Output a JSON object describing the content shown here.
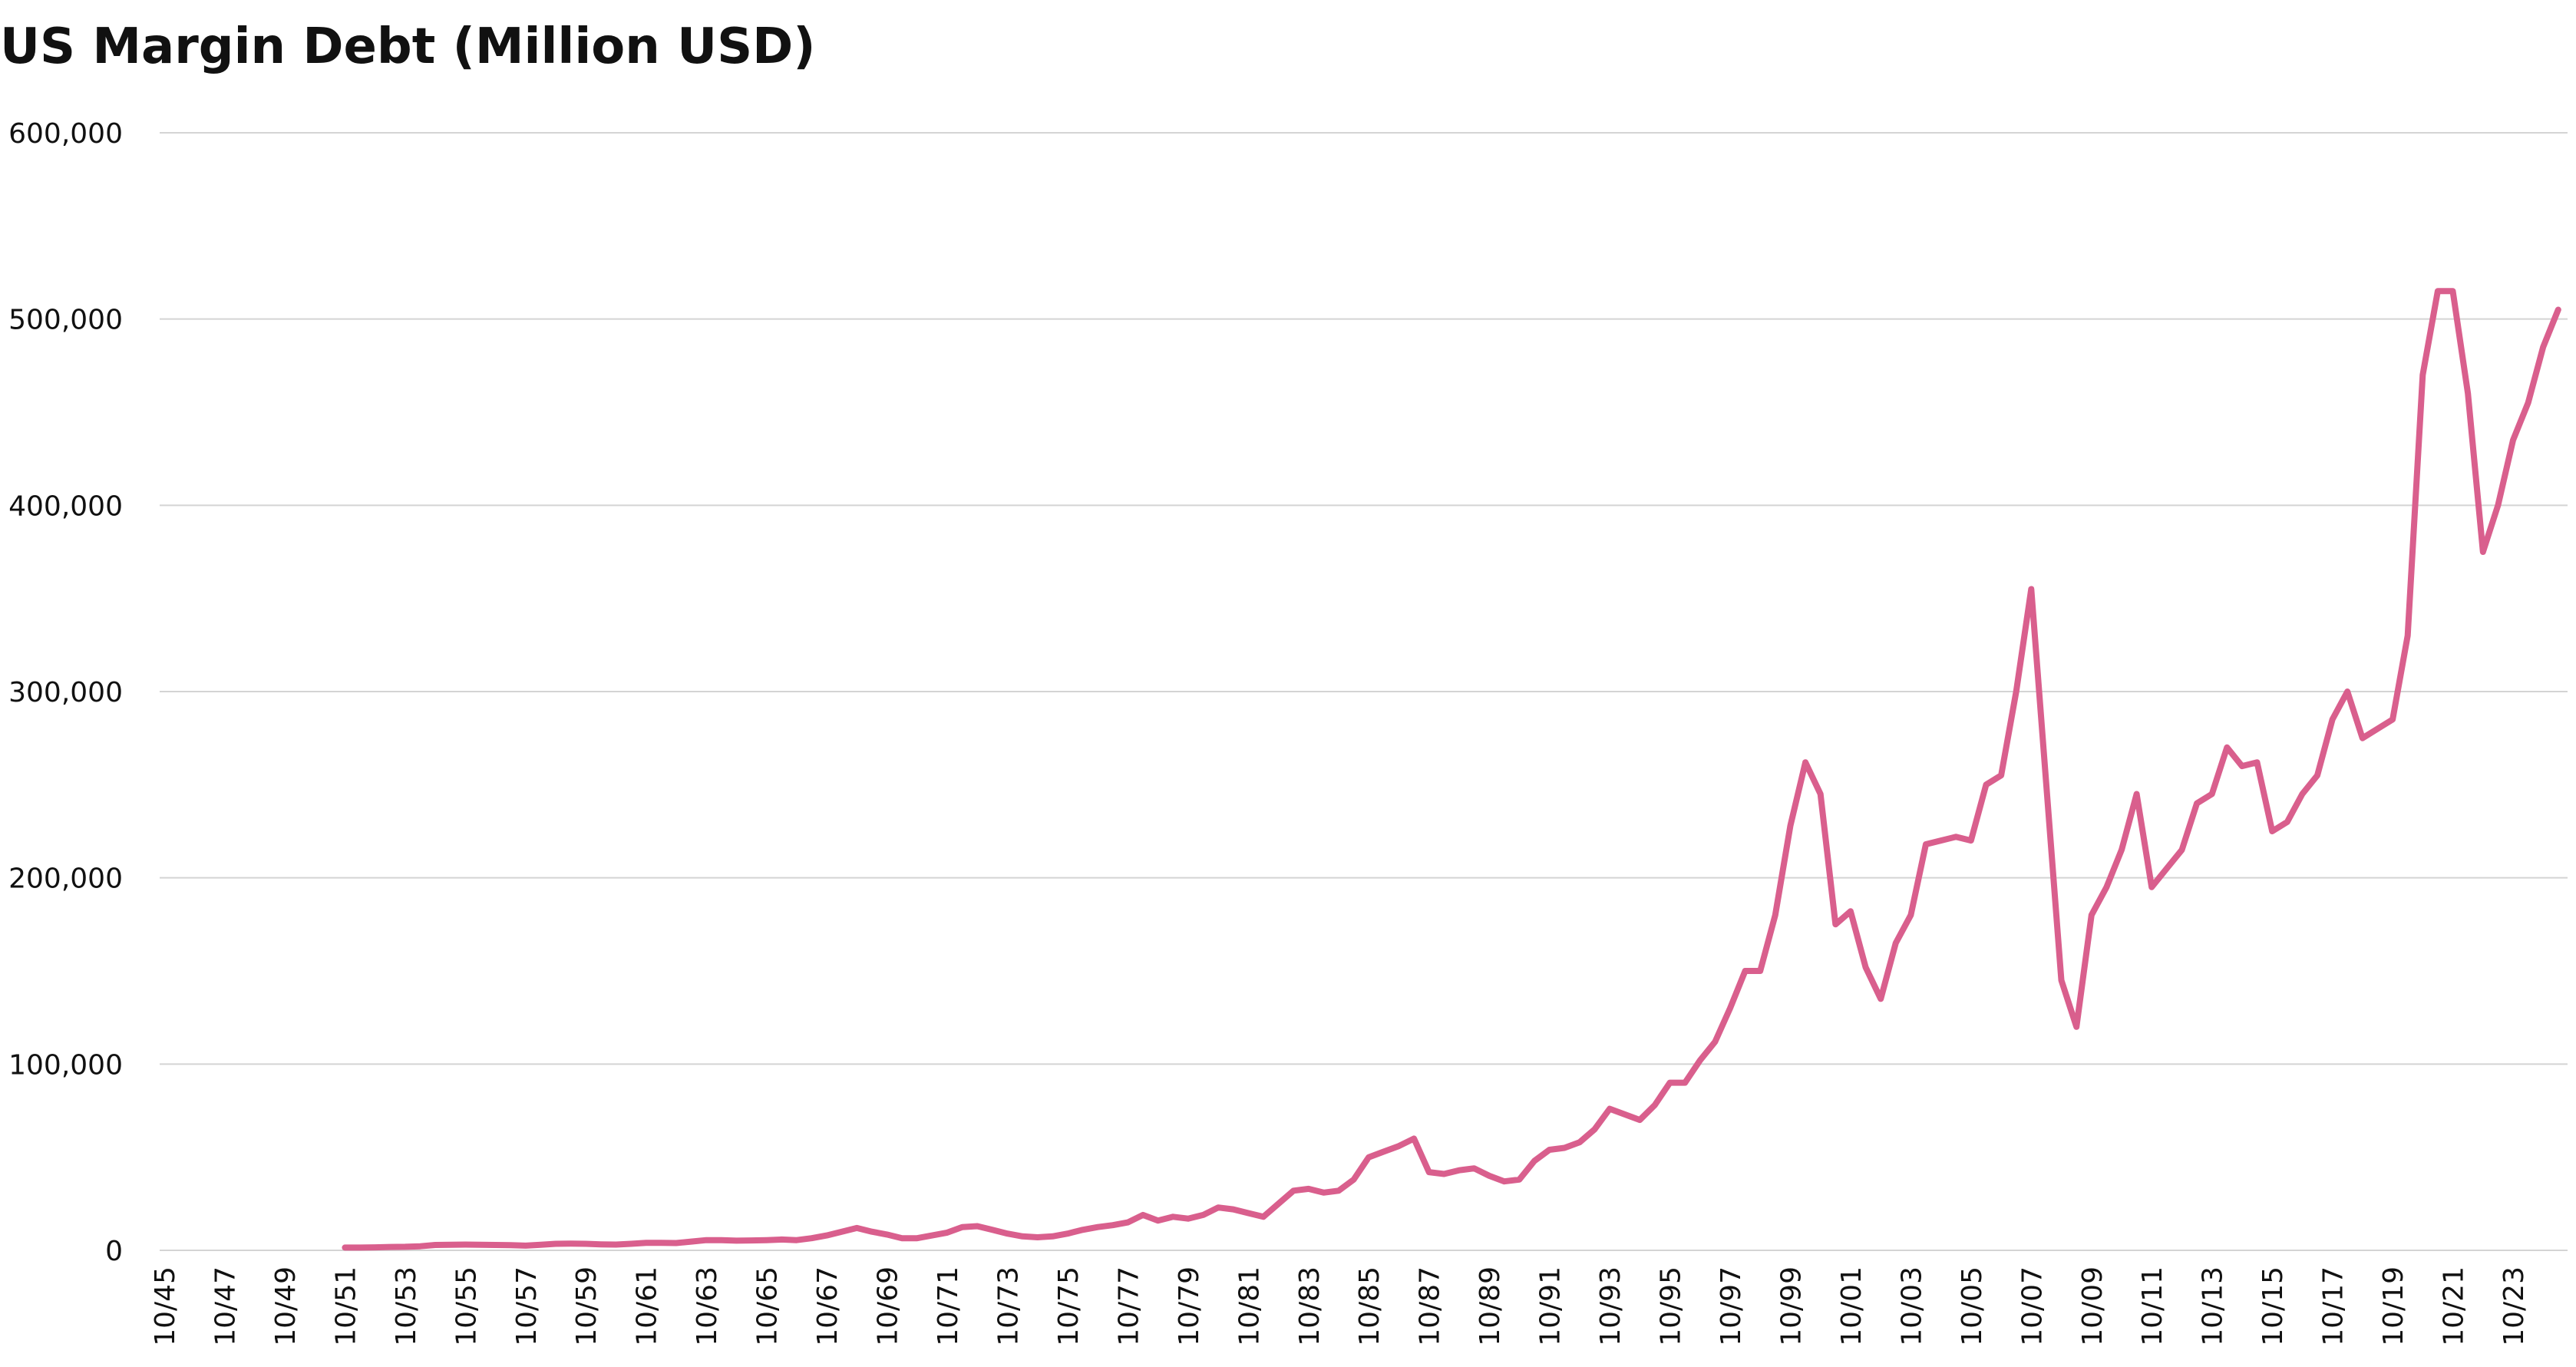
{
  "chart_data": {
    "type": "line",
    "title": "US Margin Debt (Million USD)",
    "categories": [
      "10/45",
      null,
      null,
      null,
      "10/47",
      null,
      null,
      null,
      "10/49",
      null,
      null,
      null,
      "10/51",
      null,
      null,
      null,
      "10/53",
      null,
      null,
      null,
      "10/55",
      null,
      null,
      null,
      "10/57",
      null,
      null,
      null,
      "10/59",
      null,
      null,
      null,
      "10/61",
      null,
      null,
      null,
      "10/63",
      null,
      null,
      null,
      "10/65",
      null,
      null,
      null,
      "10/67",
      null,
      null,
      null,
      "10/69",
      null,
      null,
      null,
      "10/71",
      null,
      null,
      null,
      "10/73",
      null,
      null,
      null,
      "10/75",
      null,
      null,
      null,
      "10/77",
      null,
      null,
      null,
      "10/79",
      null,
      null,
      null,
      "10/81",
      null,
      null,
      null,
      "10/83",
      null,
      null,
      null,
      "10/85",
      null,
      null,
      null,
      "10/87",
      null,
      null,
      null,
      "10/89",
      null,
      null,
      null,
      "10/91",
      null,
      null,
      null,
      "10/93",
      null,
      null,
      null,
      "10/95",
      null,
      null,
      null,
      "10/97",
      null,
      null,
      null,
      "10/99",
      null,
      null,
      null,
      "10/01",
      null,
      null,
      null,
      "10/03",
      null,
      null,
      null,
      "10/05",
      null,
      null,
      null,
      "10/07",
      null,
      null,
      null,
      "10/09",
      null,
      null,
      null,
      "10/11",
      null,
      null,
      null,
      "10/13",
      null,
      null,
      null,
      "10/15",
      null,
      null,
      null,
      "10/17",
      null,
      null,
      null,
      "10/19",
      null,
      null,
      null,
      "10/21",
      null,
      null,
      null,
      "10/23",
      null,
      null,
      null
    ],
    "series": [
      {
        "name": "US Margin Debt",
        "color": "#d95f8d",
        "values": [
          null,
          null,
          null,
          null,
          null,
          null,
          null,
          null,
          null,
          null,
          null,
          null,
          1500,
          1500,
          1600,
          1800,
          1900,
          2200,
          2900,
          3000,
          3100,
          3000,
          2900,
          2800,
          2500,
          3000,
          3500,
          3600,
          3500,
          3200,
          3100,
          3500,
          4000,
          4000,
          3900,
          4700,
          5500,
          5500,
          5200,
          5300,
          5500,
          5800,
          5500,
          6500,
          8000,
          10000,
          12000,
          10000,
          8500,
          6500,
          6500,
          8000,
          9500,
          12500,
          13000,
          11000,
          9000,
          7500,
          7000,
          7500,
          9000,
          11000,
          12500,
          13500,
          15000,
          19000,
          16000,
          18000,
          17000,
          19000,
          23000,
          22000,
          20000,
          18000,
          25000,
          32000,
          33000,
          31000,
          32000,
          38000,
          50000,
          53000,
          56000,
          60000,
          42000,
          41000,
          43000,
          44000,
          40000,
          37000,
          38000,
          48000,
          54000,
          55000,
          58000,
          65000,
          76000,
          73000,
          70000,
          78000,
          90000,
          90000,
          102000,
          112000,
          130000,
          150000,
          150000,
          180000,
          228000,
          262000,
          245000,
          175000,
          182000,
          152000,
          135000,
          165000,
          180000,
          218000,
          220000,
          222000,
          220000,
          250000,
          255000,
          300000,
          355000,
          250000,
          145000,
          120000,
          180000,
          195000,
          215000,
          245000,
          195000,
          205000,
          215000,
          240000,
          245000,
          270000,
          260000,
          262000,
          225000,
          230000,
          245000,
          255000,
          285000,
          300000,
          275000,
          280000,
          285000,
          330000,
          470000,
          515000,
          515000,
          460000,
          375000,
          400000,
          435000,
          455000,
          485000,
          505000
        ]
      }
    ],
    "ylim": [
      0,
      600000
    ],
    "yticks": [
      0,
      {
        "value": 100000,
        "label": "100,000"
      },
      {
        "value": 200000,
        "label": "200,000"
      },
      {
        "value": 300000,
        "label": "300,000"
      },
      {
        "value": 400000,
        "label": "400,000"
      },
      {
        "value": 500000,
        "label": "500,000"
      },
      {
        "value": 600000,
        "label": "600,000"
      }
    ],
    "grid": true
  }
}
